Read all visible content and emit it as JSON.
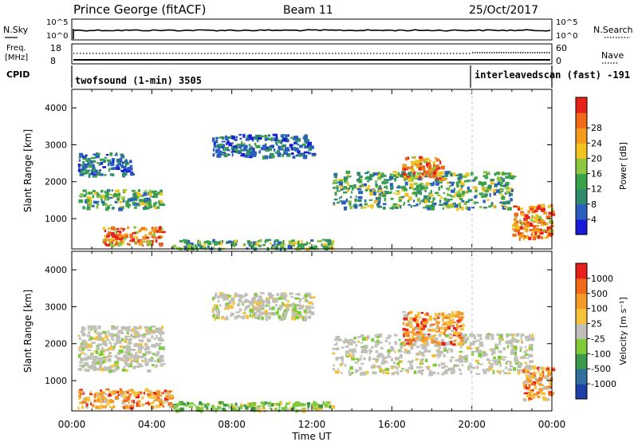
{
  "header": {
    "station": "Prince George (fitACF)",
    "beam": "Beam 11",
    "date": "25/Oct/2017"
  },
  "strip_noise": {
    "left_label": "N.Sky",
    "right_label": "N.Search",
    "left_ticks": [
      "10^5",
      "10^0"
    ],
    "right_ticks": [
      "10^5",
      "10^0"
    ]
  },
  "strip_freq": {
    "left_label_1": "Freq.",
    "left_label_2": "[MHz]",
    "right_label": "Nave",
    "left_ticks": [
      "18",
      "8"
    ],
    "right_ticks": [
      "60",
      "0"
    ]
  },
  "strip_cpid": {
    "label": "CPID",
    "mode_1": "twofsound (1-min) 3505",
    "mode_2": "interleavedscan (fast) -191"
  },
  "axes": {
    "xlabel": "Time UT",
    "ylabel": "Slant Range [km]",
    "x_ticks": [
      "00:00",
      "04:00",
      "08:00",
      "12:00",
      "16:00",
      "20:00",
      "00:00"
    ],
    "y_ticks": [
      "1000",
      "2000",
      "3000",
      "4000"
    ]
  },
  "colorbars": {
    "power": {
      "label": "Power [dB]",
      "ticks": [
        "4",
        "8",
        "12",
        "16",
        "20",
        "24",
        "28"
      ],
      "colors": [
        "#1a1ad9",
        "#2a5fc0",
        "#2f8a6e",
        "#3aa24a",
        "#8dc63f",
        "#f2c21f",
        "#f59a1f",
        "#f06a1a",
        "#e8201a"
      ]
    },
    "velocity": {
      "label": "Velocity [m s⁻¹]",
      "ticks": [
        "1000",
        "500",
        "100",
        "25",
        "-25",
        "-100",
        "-500",
        "-1000"
      ],
      "colors": [
        "#1f3fa8",
        "#2f6fa0",
        "#3a9a4a",
        "#7ecb3a",
        "#c0c0b8",
        "#f5c23a",
        "#f59a2a",
        "#f06a1a",
        "#e8201a"
      ]
    }
  },
  "chart_data": [
    {
      "type": "heatmap",
      "panel": "power",
      "x_unit": "hours UT",
      "xlim": [
        0,
        24
      ],
      "ylim": [
        180,
        4500
      ],
      "regions": [
        {
          "t": [
            0.3,
            4.5
          ],
          "r": [
            1300,
            1800
          ],
          "level": "mid"
        },
        {
          "t": [
            0.3,
            3.0
          ],
          "r": [
            2200,
            2800
          ],
          "level": "low"
        },
        {
          "t": [
            1.5,
            4.5
          ],
          "r": [
            300,
            800
          ],
          "level": "high"
        },
        {
          "t": [
            5.0,
            13.0
          ],
          "r": [
            200,
            450
          ],
          "level": "mid"
        },
        {
          "t": [
            7.0,
            12.0
          ],
          "r": [
            2700,
            3300
          ],
          "level": "low"
        },
        {
          "t": [
            13.0,
            22.0
          ],
          "r": [
            1300,
            2300
          ],
          "level": "mid"
        },
        {
          "t": [
            16.5,
            18.5
          ],
          "r": [
            2100,
            2700
          ],
          "level": "high"
        },
        {
          "t": [
            22.0,
            24.0
          ],
          "r": [
            500,
            1400
          ],
          "level": "high"
        }
      ]
    },
    {
      "type": "heatmap",
      "panel": "velocity",
      "x_unit": "hours UT",
      "xlim": [
        0,
        24
      ],
      "ylim": [
        180,
        4500
      ],
      "regions": [
        {
          "t": [
            0.3,
            4.5
          ],
          "r": [
            1300,
            2500
          ],
          "level": "near-zero"
        },
        {
          "t": [
            0.3,
            5.0
          ],
          "r": [
            300,
            800
          ],
          "level": "negative"
        },
        {
          "t": [
            5.0,
            13.0
          ],
          "r": [
            200,
            450
          ],
          "level": "positive"
        },
        {
          "t": [
            7.0,
            12.0
          ],
          "r": [
            2700,
            3400
          ],
          "level": "near-zero"
        },
        {
          "t": [
            13.0,
            23.0
          ],
          "r": [
            1200,
            2300
          ],
          "level": "near-zero"
        },
        {
          "t": [
            16.5,
            19.5
          ],
          "r": [
            2000,
            2900
          ],
          "level": "negative"
        },
        {
          "t": [
            22.5,
            24.0
          ],
          "r": [
            500,
            1400
          ],
          "level": "negative"
        }
      ]
    }
  ]
}
